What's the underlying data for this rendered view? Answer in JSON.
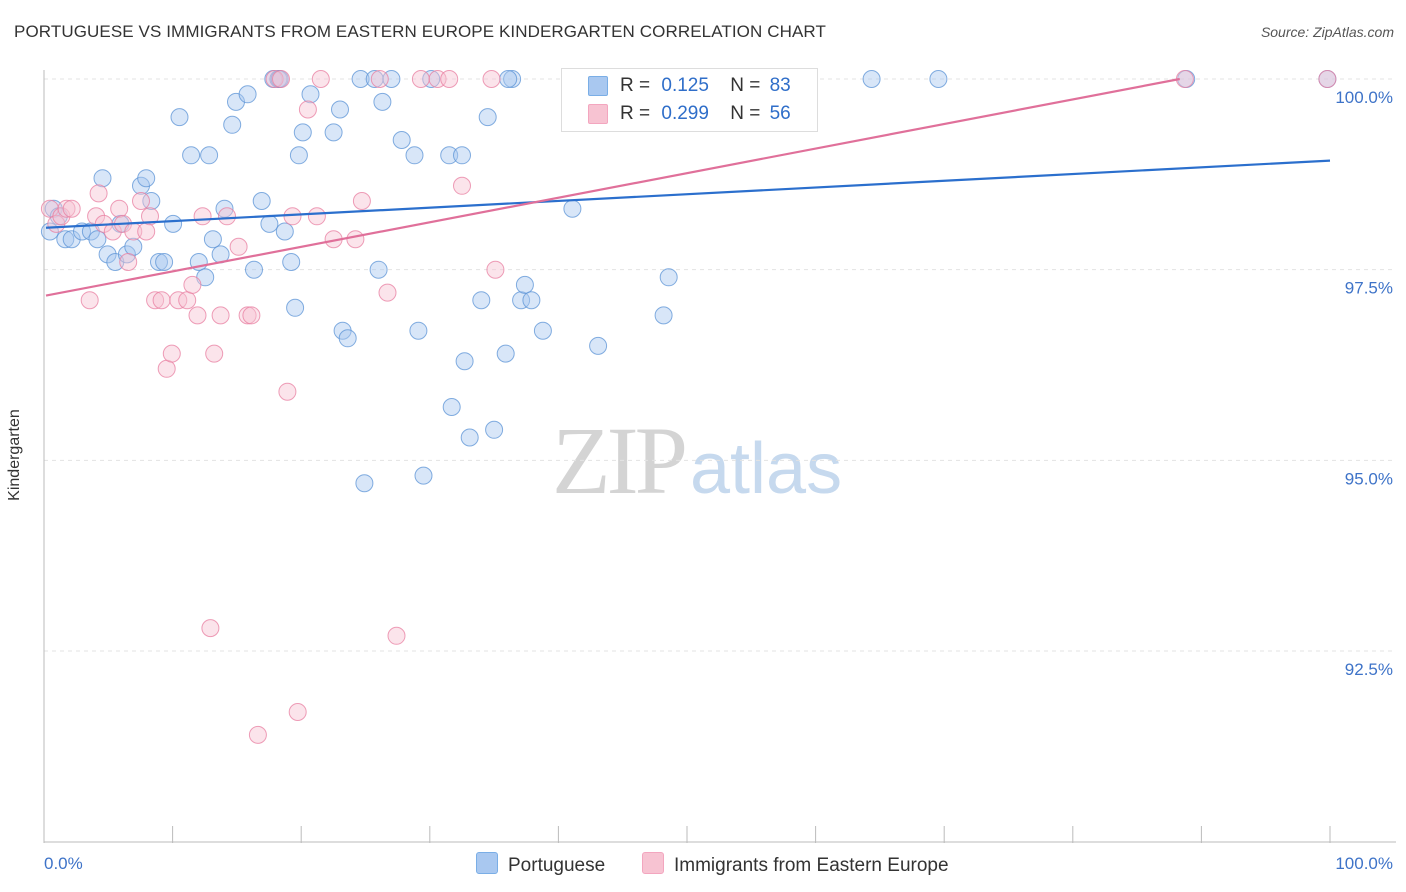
{
  "header": {
    "title": "PORTUGUESE VS IMMIGRANTS FROM EASTERN EUROPE KINDERGARTEN CORRELATION CHART",
    "source": "Source: ZipAtlas.com"
  },
  "watermark": {
    "zip": "ZIP",
    "atlas": "atlas"
  },
  "legend": {
    "rows": [
      {
        "r_label": "R =",
        "r_value": "0.125",
        "n_label": "N =",
        "n_value": "83",
        "color": "#7aaee6"
      },
      {
        "r_label": "R =",
        "r_value": "0.299",
        "n_label": "N =",
        "n_value": "56",
        "color": "#f3a6bf"
      }
    ]
  },
  "bottom_legend": [
    {
      "label": "Portuguese",
      "color": "#a9c8f0"
    },
    {
      "label": "Immigrants from Eastern Europe",
      "color": "#f7c3d2"
    }
  ],
  "chart_data": {
    "type": "scatter",
    "title": "PORTUGUESE VS IMMIGRANTS FROM EASTERN EUROPE KINDERGARTEN CORRELATION CHART",
    "xlabel": "",
    "ylabel": "Kindergarten",
    "xlim": [
      0,
      100
    ],
    "ylim": [
      90.0,
      100.4
    ],
    "x_tick_labels": [
      "0.0%",
      "100.0%"
    ],
    "y_ticks": [
      92.5,
      95.0,
      97.5,
      100.0
    ],
    "y_tick_labels": [
      "92.5%",
      "95.0%",
      "97.5%",
      "100.0%"
    ],
    "grid": true,
    "series": [
      {
        "name": "Portuguese",
        "color": "#5b93d6",
        "fill": "#a9c8f0",
        "line_color": "#2b6fcd",
        "trend": {
          "x": [
            0,
            100
          ],
          "y": [
            98.05,
            98.93
          ]
        },
        "points": [
          [
            0.3,
            98.0
          ],
          [
            0.6,
            98.3
          ],
          [
            1.0,
            98.2
          ],
          [
            1.5,
            97.9
          ],
          [
            2.0,
            97.9
          ],
          [
            2.8,
            98.0
          ],
          [
            3.5,
            98.0
          ],
          [
            4.0,
            97.9
          ],
          [
            4.4,
            98.7
          ],
          [
            4.8,
            97.7
          ],
          [
            5.4,
            97.6
          ],
          [
            5.8,
            98.1
          ],
          [
            6.3,
            97.7
          ],
          [
            6.8,
            97.8
          ],
          [
            7.4,
            98.6
          ],
          [
            7.8,
            98.7
          ],
          [
            8.2,
            98.4
          ],
          [
            8.8,
            97.6
          ],
          [
            9.2,
            97.6
          ],
          [
            9.9,
            98.1
          ],
          [
            10.4,
            99.5
          ],
          [
            11.3,
            99.0
          ],
          [
            11.9,
            97.6
          ],
          [
            12.4,
            97.4
          ],
          [
            12.7,
            99.0
          ],
          [
            13.0,
            97.9
          ],
          [
            13.6,
            97.7
          ],
          [
            13.9,
            98.3
          ],
          [
            14.5,
            99.4
          ],
          [
            14.8,
            99.7
          ],
          [
            15.7,
            99.8
          ],
          [
            16.2,
            97.5
          ],
          [
            16.8,
            98.4
          ],
          [
            17.4,
            98.1
          ],
          [
            17.7,
            100.0
          ],
          [
            18.1,
            100.0
          ],
          [
            18.6,
            98.0
          ],
          [
            19.1,
            97.6
          ],
          [
            19.4,
            97.0
          ],
          [
            19.7,
            99.0
          ],
          [
            20.0,
            99.3
          ],
          [
            20.6,
            99.8
          ],
          [
            22.4,
            99.3
          ],
          [
            22.9,
            99.6
          ],
          [
            23.1,
            96.7
          ],
          [
            23.5,
            96.6
          ],
          [
            24.5,
            100.0
          ],
          [
            24.8,
            94.7
          ],
          [
            25.6,
            100.0
          ],
          [
            25.9,
            97.5
          ],
          [
            26.2,
            99.7
          ],
          [
            26.9,
            100.0
          ],
          [
            27.7,
            99.2
          ],
          [
            28.7,
            99.0
          ],
          [
            29.0,
            96.7
          ],
          [
            29.4,
            94.8
          ],
          [
            30.0,
            100.0
          ],
          [
            31.4,
            99.0
          ],
          [
            31.6,
            95.7
          ],
          [
            32.4,
            99.0
          ],
          [
            32.6,
            96.3
          ],
          [
            33.0,
            95.3
          ],
          [
            33.9,
            97.1
          ],
          [
            34.4,
            99.5
          ],
          [
            34.9,
            95.4
          ],
          [
            35.8,
            96.4
          ],
          [
            36.3,
            100.0
          ],
          [
            37.0,
            97.1
          ],
          [
            37.3,
            97.3
          ],
          [
            37.8,
            97.1
          ],
          [
            38.7,
            96.7
          ],
          [
            41.0,
            98.3
          ],
          [
            43.0,
            96.5
          ],
          [
            48.1,
            96.9
          ],
          [
            48.5,
            97.4
          ],
          [
            56.7,
            100.0
          ],
          [
            57.1,
            100.0
          ],
          [
            64.3,
            100.0
          ],
          [
            69.5,
            100.0
          ],
          [
            88.8,
            100.0
          ],
          [
            99.8,
            100.0
          ],
          [
            18.2,
            100.0
          ],
          [
            36.0,
            100.0
          ]
        ]
      },
      {
        "name": "Immigrants from Eastern Europe",
        "color": "#e87ea0",
        "fill": "#f7c3d2",
        "line_color": "#e0709a",
        "trend": {
          "x": [
            0,
            88.3
          ],
          "y": [
            97.16,
            100.0
          ]
        },
        "points": [
          [
            0.3,
            98.3
          ],
          [
            0.8,
            98.1
          ],
          [
            1.2,
            98.2
          ],
          [
            1.6,
            98.3
          ],
          [
            2.0,
            98.3
          ],
          [
            3.4,
            97.1
          ],
          [
            3.9,
            98.2
          ],
          [
            4.1,
            98.5
          ],
          [
            4.5,
            98.1
          ],
          [
            5.2,
            98.0
          ],
          [
            5.7,
            98.3
          ],
          [
            6.0,
            98.1
          ],
          [
            6.4,
            97.6
          ],
          [
            6.8,
            98.0
          ],
          [
            7.4,
            98.4
          ],
          [
            7.8,
            98.0
          ],
          [
            8.1,
            98.2
          ],
          [
            8.5,
            97.1
          ],
          [
            9.0,
            97.1
          ],
          [
            9.4,
            96.2
          ],
          [
            9.8,
            96.4
          ],
          [
            10.3,
            97.1
          ],
          [
            11.0,
            97.1
          ],
          [
            11.4,
            97.3
          ],
          [
            11.8,
            96.9
          ],
          [
            12.2,
            98.2
          ],
          [
            12.8,
            92.8
          ],
          [
            13.1,
            96.4
          ],
          [
            13.6,
            96.9
          ],
          [
            14.1,
            98.2
          ],
          [
            15.0,
            97.8
          ],
          [
            15.7,
            96.9
          ],
          [
            16.0,
            96.9
          ],
          [
            16.5,
            91.4
          ],
          [
            17.8,
            100.0
          ],
          [
            18.3,
            100.0
          ],
          [
            18.8,
            95.9
          ],
          [
            19.2,
            98.2
          ],
          [
            19.6,
            91.7
          ],
          [
            20.4,
            99.6
          ],
          [
            21.1,
            98.2
          ],
          [
            21.4,
            100.0
          ],
          [
            22.4,
            97.9
          ],
          [
            24.1,
            97.9
          ],
          [
            24.6,
            98.4
          ],
          [
            26.0,
            100.0
          ],
          [
            26.6,
            97.2
          ],
          [
            27.3,
            92.7
          ],
          [
            29.2,
            100.0
          ],
          [
            30.5,
            100.0
          ],
          [
            31.4,
            100.0
          ],
          [
            32.4,
            98.6
          ],
          [
            34.7,
            100.0
          ],
          [
            35.0,
            97.5
          ],
          [
            88.7,
            100.0
          ],
          [
            99.8,
            100.0
          ]
        ]
      }
    ]
  },
  "axes": {
    "y_title": "Kindergarten",
    "x_left": "0.0%",
    "x_right": "100.0%",
    "y_ticks": [
      "100.0%",
      "97.5%",
      "95.0%",
      "92.5%"
    ]
  }
}
